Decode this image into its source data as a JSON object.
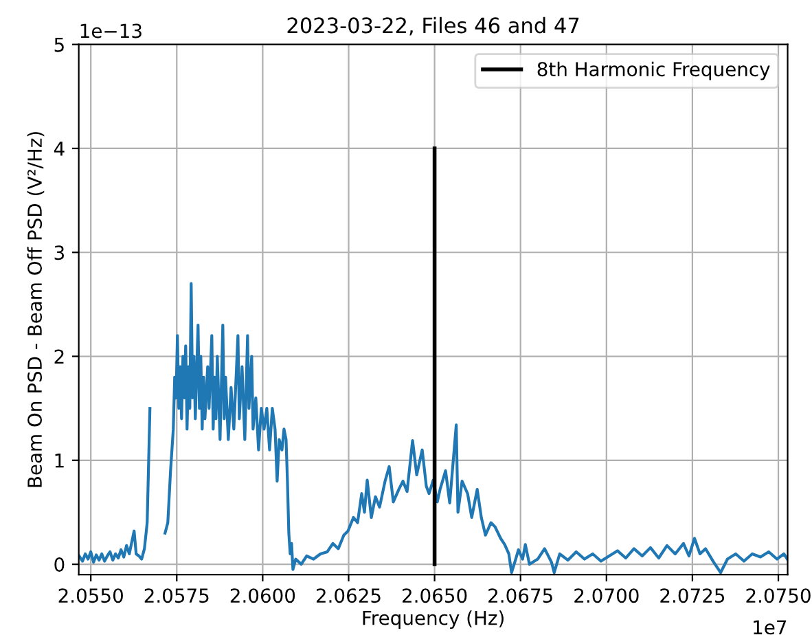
{
  "chart_data": {
    "type": "line",
    "title": "2023-03-22, Files 46 and 47",
    "xlabel": "Frequency (Hz)",
    "ylabel": "Beam On PSD - Beam Off PSD (V²/Hz)",
    "annotations": [
      "1e−13",
      "1e7"
    ],
    "xlim": [
      2.05465,
      2.07527
    ],
    "ylim": [
      -0.1,
      5
    ],
    "xticks": [
      {
        "value": 2.055,
        "label": "2.0550"
      },
      {
        "value": 2.0575,
        "label": "2.0575"
      },
      {
        "value": 2.06,
        "label": "2.0600"
      },
      {
        "value": 2.0625,
        "label": "2.0625"
      },
      {
        "value": 2.065,
        "label": "2.0650"
      },
      {
        "value": 2.0675,
        "label": "2.0675"
      },
      {
        "value": 2.07,
        "label": "2.0700"
      },
      {
        "value": 2.0725,
        "label": "2.0725"
      },
      {
        "value": 2.075,
        "label": "2.0750"
      }
    ],
    "yticks": [
      0,
      1,
      2,
      3,
      4,
      5
    ],
    "grid": true,
    "legend": "top right",
    "series": [
      {
        "color": "#1f77b4",
        "x": [
          2.05466,
          2.05476,
          2.05484,
          2.05492,
          2.055,
          2.05508,
          2.05516,
          2.05524,
          2.05532,
          2.0554,
          2.05548,
          2.05556,
          2.05564,
          2.05572,
          2.0558,
          2.05588,
          2.05596,
          2.05604,
          2.05612,
          2.05626,
          2.05632,
          2.0564,
          2.05648,
          2.05656,
          2.05664,
          2.05672,
          2.05678,
          2.05684,
          2.05688,
          2.057,
          2.05704,
          2.05708,
          2.05716,
          2.05724,
          2.05732,
          2.0574,
          2.05744,
          2.05748,
          2.05752,
          2.05756,
          2.0576,
          2.05764,
          2.05768,
          2.05772,
          2.05776,
          2.0578,
          2.05784,
          2.05788,
          2.05792,
          2.05796,
          2.058,
          2.05804,
          2.05812,
          2.05816,
          2.0582,
          2.05824,
          2.05828,
          2.05832,
          2.0584,
          2.05844,
          2.05852,
          2.05856,
          2.0586,
          2.05864,
          2.05868,
          2.05876,
          2.05884,
          2.05888,
          2.05892,
          2.059,
          2.05908,
          2.05916,
          2.05928,
          2.05932,
          2.0594,
          2.05948,
          2.05956,
          2.0596,
          2.05968,
          2.05972,
          2.0598,
          2.05988,
          2.05996,
          2.06004,
          2.06012,
          2.0602,
          2.06028,
          2.06036,
          2.06042,
          2.06048,
          2.06056,
          2.06062,
          2.06068,
          2.06072,
          2.06076,
          2.0608,
          2.06084,
          2.06088,
          2.06096,
          2.06112,
          2.06128,
          2.06148,
          2.06168,
          2.06188,
          2.06204,
          2.0622,
          2.06236,
          2.06248,
          2.06264,
          2.06276,
          2.06288,
          2.06296,
          2.06304,
          2.06316,
          2.06328,
          2.0634,
          2.06356,
          2.06368,
          2.0638,
          2.06396,
          2.06408,
          2.0642,
          2.06436,
          2.06448,
          2.06464,
          2.06476,
          2.06484,
          2.06496,
          2.06508,
          2.06516,
          2.06532,
          2.06544,
          2.06563,
          2.06568,
          2.0658,
          2.06596,
          2.06608,
          2.06624,
          2.06636,
          2.06648,
          2.06664,
          2.06676,
          2.06692,
          2.06704,
          2.06716,
          2.06724,
          2.06736,
          2.06744,
          2.06756,
          2.06764,
          2.06776,
          2.068,
          2.0682,
          2.0684,
          2.06848,
          2.06864,
          2.06888,
          2.06912,
          2.06936,
          2.0696,
          2.06984,
          2.07008,
          2.07032,
          2.07056,
          2.0708,
          2.07104,
          2.07128,
          2.07152,
          2.07176,
          2.072,
          2.07224,
          2.0724,
          2.07256,
          2.07272,
          2.07288,
          2.07312,
          2.07332,
          2.07352,
          2.07376,
          2.074,
          2.07424,
          2.07448,
          2.07472,
          2.07496,
          2.07516,
          2.07526
        ],
        "values": [
          0.08,
          0.03,
          0.1,
          0.05,
          0.12,
          0.02,
          0.09,
          0.04,
          0.1,
          0.03,
          0.08,
          0.12,
          0.04,
          0.1,
          0.06,
          0.14,
          0.07,
          0.18,
          0.1,
          0.32,
          0.1,
          0.08,
          0.05,
          0.15,
          0.4,
          1.5,
          null,
          null,
          null,
          null,
          null,
          null,
          0.3,
          0.4,
          0.9,
          1.3,
          1.8,
          1.6,
          2.2,
          1.5,
          1.9,
          1.4,
          2,
          1.6,
          2.1,
          1.3,
          1.9,
          1.5,
          2.7,
          1.6,
          2,
          1.4,
          2.3,
          1.5,
          2,
          1.3,
          1.8,
          1.4,
          1.9,
          1.5,
          2.2,
          1.3,
          1.8,
          1.4,
          2,
          1.2,
          2.3,
          1.4,
          1.8,
          1.2,
          1.7,
          1.3,
          2.2,
          1.4,
          1.9,
          1.2,
          2.2,
          1.5,
          2,
          1.3,
          1.6,
          1.1,
          1.5,
          1.3,
          1.5,
          1.1,
          1.5,
          1.3,
          0.8,
          1.2,
          1.1,
          1.3,
          1.2,
          0.8,
          0.3,
          0.1,
          0.2,
          -0.05,
          0.05,
          0,
          0.08,
          0.05,
          0.1,
          0.12,
          0.2,
          0.15,
          0.28,
          0.32,
          0.45,
          0.4,
          0.68,
          0.5,
          0.81,
          0.45,
          0.65,
          0.55,
          0.8,
          0.94,
          0.6,
          0.72,
          0.8,
          0.7,
          1.19,
          0.86,
          1.1,
          0.75,
          0.68,
          0.81,
          0.6,
          0.72,
          0.9,
          0.59,
          1.34,
          0.5,
          0.8,
          0.68,
          0.45,
          0.72,
          0.45,
          0.28,
          0.4,
          0.36,
          0.25,
          0.19,
          0.1,
          -0.08,
          0.05,
          0.14,
          0.05,
          0.19,
          0,
          0.05,
          0.15,
          0.02,
          -0.08,
          0.1,
          0.04,
          0.12,
          0.05,
          0.1,
          0.03,
          0.08,
          0.13,
          0.06,
          0.15,
          0.08,
          0.16,
          0.06,
          0.18,
          0.1,
          0.2,
          0.08,
          0.25,
          0.1,
          0.15,
          0.02,
          -0.08,
          0.05,
          0.1,
          0.03,
          0.1,
          0.07,
          0.12,
          0.05,
          0.1,
          0.05
        ]
      },
      {
        "name": "8th Harmonic Frequency",
        "color": "#000000",
        "x": [
          2.065,
          2.065
        ],
        "values": [
          0,
          4
        ]
      }
    ]
  }
}
